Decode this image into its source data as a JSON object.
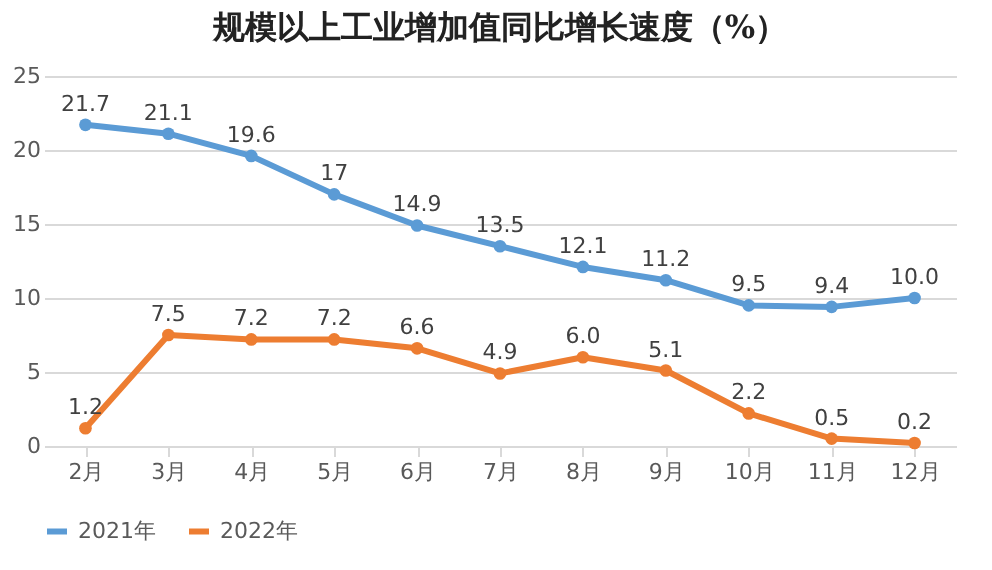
{
  "chart_data": {
    "type": "line",
    "title": "规模以上工业增加值同比增长速度（%）",
    "categories": [
      "2月",
      "3月",
      "4月",
      "5月",
      "6月",
      "7月",
      "8月",
      "9月",
      "10月",
      "11月",
      "12月"
    ],
    "series": [
      {
        "name": "2021年",
        "color": "#5b9bd5",
        "values": [
          21.7,
          21.1,
          19.6,
          17,
          14.9,
          13.5,
          12.1,
          11.2,
          9.5,
          9.4,
          10.0
        ],
        "value_labels": [
          "21.7",
          "21.1",
          "19.6",
          "17",
          "14.9",
          "13.5",
          "12.1",
          "11.2",
          "9.5",
          "9.4",
          "10.0"
        ]
      },
      {
        "name": "2022年",
        "color": "#ed7d31",
        "values": [
          1.2,
          7.5,
          7.2,
          7.2,
          6.6,
          4.9,
          6.0,
          5.1,
          2.2,
          0.5,
          0.2
        ],
        "value_labels": [
          "1.2",
          "7.5",
          "7.2",
          "7.2",
          "6.6",
          "4.9",
          "6.0",
          "5.1",
          "2.2",
          "0.5",
          "0.2"
        ]
      }
    ],
    "ylim": [
      0,
      25
    ],
    "yticks": [
      0,
      5,
      10,
      15,
      20,
      25
    ],
    "grid": "y",
    "legend": "bottom",
    "marker": "circle",
    "line_style": "solid"
  }
}
